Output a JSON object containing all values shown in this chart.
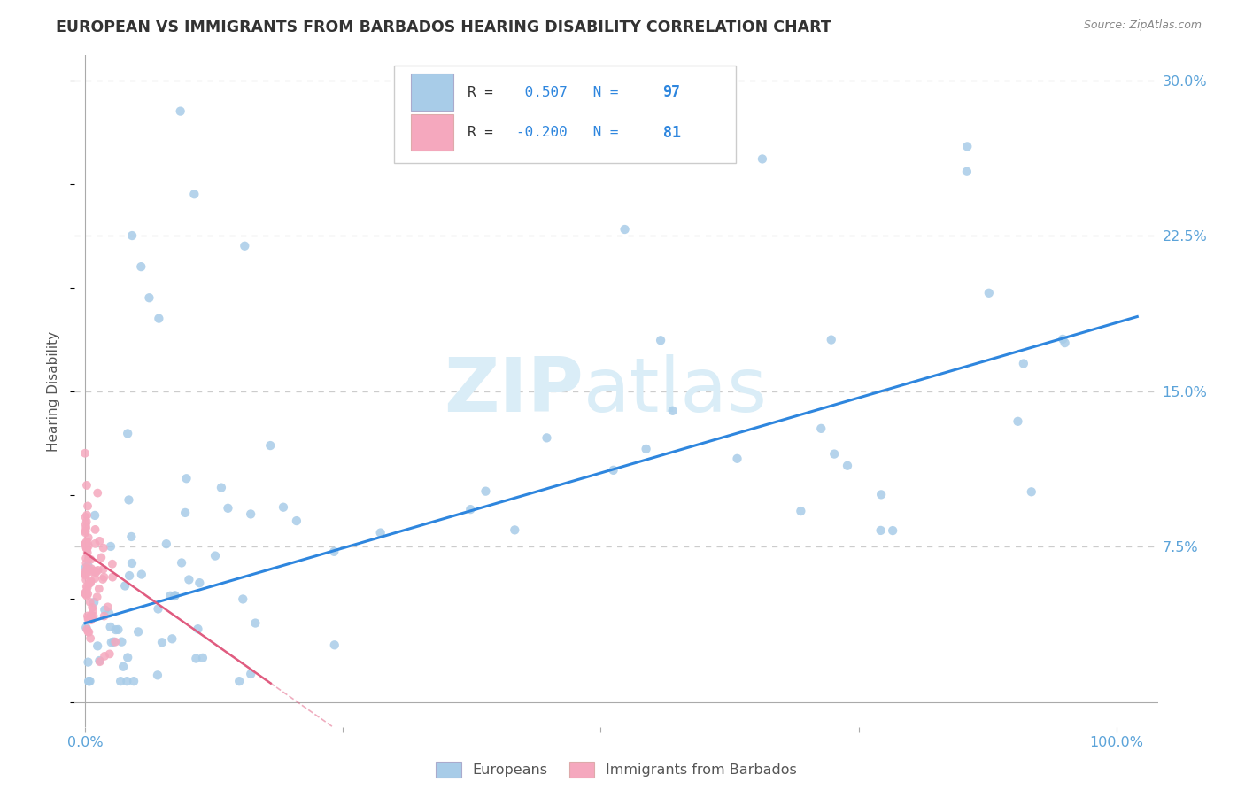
{
  "title": "EUROPEAN VS IMMIGRANTS FROM BARBADOS HEARING DISABILITY CORRELATION CHART",
  "source": "Source: ZipAtlas.com",
  "ylabel": "Hearing Disability",
  "ytick_labels": [
    "7.5%",
    "15.0%",
    "22.5%",
    "30.0%"
  ],
  "ytick_values": [
    0.075,
    0.15,
    0.225,
    0.3
  ],
  "grid_color": "#cccccc",
  "background_color": "#ffffff",
  "title_color": "#333333",
  "axis_label_color": "#555555",
  "tick_color": "#5ba3d9",
  "watermark_zip_color": "#daedf7",
  "watermark_atlas_color": "#daedf7",
  "legend_R1": "0.507",
  "legend_N1": "97",
  "legend_R2": "-0.200",
  "legend_N2": "81",
  "legend_label1": "Europeans",
  "legend_label2": "Immigrants from Barbados",
  "blue_marker_color": "#a8cce8",
  "blue_line_color": "#2e86de",
  "pink_marker_color": "#f5a8be",
  "pink_line_color": "#e05c80",
  "legend_value_color": "#2e86de",
  "legend_text_color": "#333333"
}
